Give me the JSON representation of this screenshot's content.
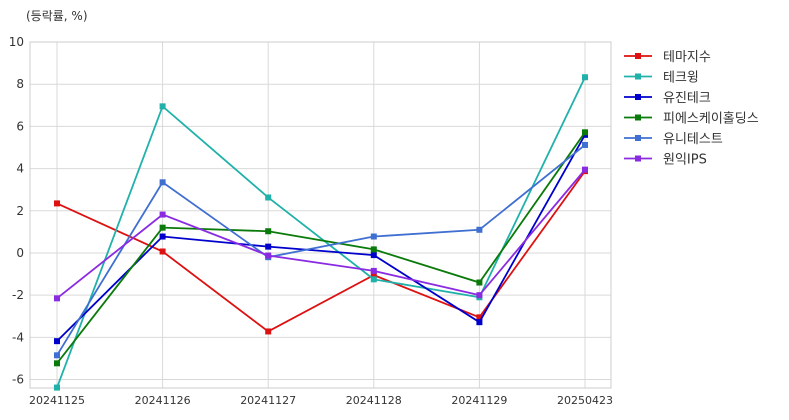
{
  "chart_data": {
    "type": "line",
    "unit_label": "(등락률, %)",
    "categories": [
      "20241125",
      "20241126",
      "20241127",
      "20241128",
      "20241129",
      "20250423"
    ],
    "ylim": [
      -6.4,
      10
    ],
    "yticks": [
      -6,
      -4,
      -2,
      0,
      2,
      4,
      6,
      8,
      10
    ],
    "grid": true,
    "legend_position": "right",
    "series": [
      {
        "name": "테마지수",
        "color": "#dd1111",
        "values": [
          2.35,
          0.07,
          -3.72,
          -1.05,
          -3.05,
          3.88
        ]
      },
      {
        "name": "테크윙",
        "color": "#20b2aa",
        "values": [
          -6.38,
          6.95,
          2.63,
          -1.25,
          -2.1,
          8.33
        ]
      },
      {
        "name": "유진테크",
        "color": "#0000cc",
        "values": [
          -4.18,
          0.78,
          0.3,
          -0.1,
          -3.28,
          5.6
        ]
      },
      {
        "name": "피에스케이홀딩스",
        "color": "#0a7a0a",
        "values": [
          -5.23,
          1.2,
          1.03,
          0.17,
          -1.4,
          5.72
        ]
      },
      {
        "name": "유니테스트",
        "color": "#3f6fd1",
        "values": [
          -4.85,
          3.35,
          -0.2,
          0.78,
          1.1,
          5.12
        ]
      },
      {
        "name": "원익IPS",
        "color": "#8a2be2",
        "values": [
          -2.15,
          1.82,
          -0.12,
          -0.85,
          -2.0,
          3.95
        ]
      }
    ]
  }
}
